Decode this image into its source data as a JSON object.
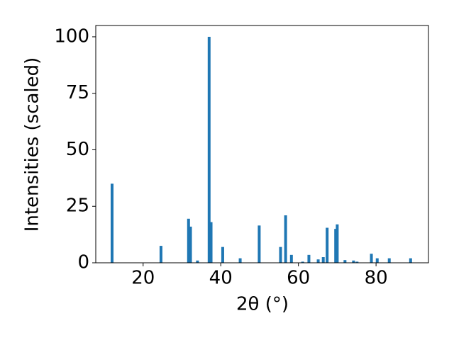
{
  "chart_data": {
    "type": "bar",
    "x": [
      12.0,
      24.6,
      31.7,
      32.2,
      34.0,
      37.0,
      37.5,
      40.5,
      45.0,
      49.9,
      55.4,
      56.7,
      58.2,
      61.1,
      62.7,
      65.1,
      66.4,
      67.4,
      69.6,
      70.0,
      72.0,
      74.2,
      75.1,
      78.8,
      80.3,
      83.4,
      88.9
    ],
    "values": [
      35,
      7.5,
      19.5,
      16,
      1,
      100,
      18,
      7,
      2,
      16.5,
      7,
      21,
      3.5,
      0.5,
      3.5,
      1.5,
      2.5,
      15.5,
      15,
      17,
      1.2,
      1,
      0.5,
      4,
      2,
      2,
      2
    ],
    "color": "#1f77b4",
    "xlabel": "2θ (°)",
    "ylabel": "Intensities (scaled)",
    "xlim": [
      7.8,
      93.5
    ],
    "xticks": [
      20,
      40,
      60,
      80
    ],
    "ylim": [
      0,
      105
    ],
    "yticks": [
      0,
      25,
      50,
      75,
      100
    ],
    "grid": false
  }
}
